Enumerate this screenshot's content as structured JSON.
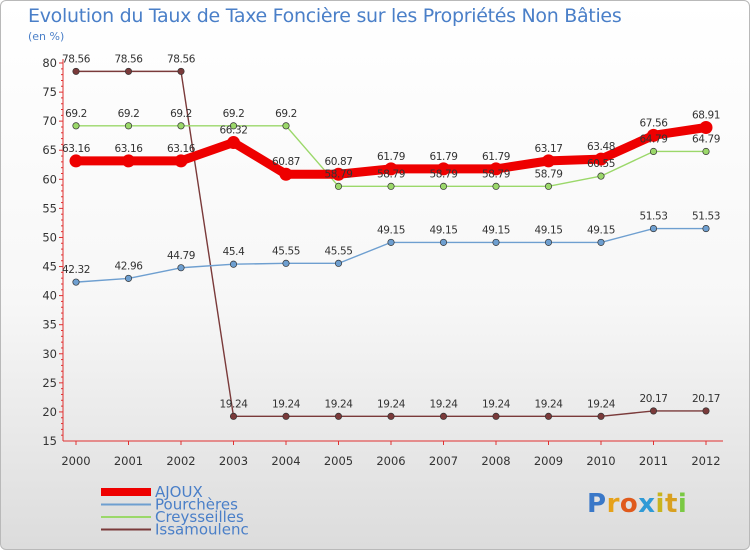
{
  "header": {
    "title": "Evolution du Taux de Taxe Foncière sur les Propriétés Non Bâties",
    "unit": "(en %)"
  },
  "logo": {
    "letters": [
      "P",
      "r",
      "o",
      "x",
      "i",
      "t",
      "i"
    ],
    "colors": [
      "#3a78c8",
      "#e6a21a",
      "#e05a1c",
      "#2f9ad6",
      "#c8b41e",
      "#d8a020",
      "#7ac943"
    ]
  },
  "chart_data": {
    "type": "line",
    "title": "Evolution du Taux de Taxe Foncière sur les Propriétés Non Bâties",
    "ylabel": "(en %)",
    "xlabel": "",
    "x": [
      "2000",
      "2001",
      "2002",
      "2003",
      "2004",
      "2005",
      "2006",
      "2007",
      "2008",
      "2009",
      "2010",
      "2011",
      "2012"
    ],
    "ylim": [
      15,
      80
    ],
    "yticks": [
      15,
      20,
      25,
      30,
      35,
      40,
      45,
      50,
      55,
      60,
      65,
      70,
      75,
      80
    ],
    "grid": false,
    "legend_position": "bottom-left",
    "series": [
      {
        "name": "AJOUX",
        "color": "#ee0000",
        "thick": true,
        "values": [
          63.16,
          63.16,
          63.16,
          66.32,
          60.87,
          60.87,
          61.79,
          61.79,
          61.79,
          63.17,
          63.48,
          67.56,
          68.91
        ],
        "labels": [
          "63.16",
          "63.16",
          "63.16",
          "66.32",
          "60.87",
          "60.87",
          "61.79",
          "61.79",
          "61.79",
          "63.17",
          "63.48",
          "67.56",
          "68.91"
        ]
      },
      {
        "name": "Pourchères",
        "color": "#6e9fd0",
        "thick": false,
        "values": [
          42.32,
          42.96,
          44.79,
          45.4,
          45.55,
          45.55,
          49.15,
          49.15,
          49.15,
          49.15,
          49.15,
          51.53,
          51.53
        ],
        "labels": [
          "42.32",
          "42.96",
          "44.79",
          "45.4",
          "45.55",
          "45.55",
          "49.15",
          "49.15",
          "49.15",
          "49.15",
          "49.15",
          "51.53",
          "51.53"
        ]
      },
      {
        "name": "Creysseilles",
        "color": "#9bd86a",
        "thick": false,
        "values": [
          69.2,
          69.2,
          69.2,
          69.2,
          69.2,
          58.79,
          58.79,
          58.79,
          58.79,
          58.79,
          60.55,
          64.79,
          64.79
        ],
        "labels": [
          "69.2",
          "69.2",
          "69.2",
          "69.2",
          "69.2",
          "58.79",
          "58.79",
          "58.79",
          "58.79",
          "58.79",
          "60.55",
          "64.79",
          "64.79"
        ]
      },
      {
        "name": "Issamoulenc",
        "color": "#7a3a3a",
        "thick": false,
        "values": [
          78.56,
          78.56,
          78.56,
          19.24,
          19.24,
          19.24,
          19.24,
          19.24,
          19.24,
          19.24,
          19.24,
          20.17,
          20.17
        ],
        "labels": [
          "78.56",
          "78.56",
          "78.56",
          "19.24",
          "19.24",
          "19.24",
          "19.24",
          "19.24",
          "19.24",
          "19.24",
          "19.24",
          "20.17",
          "20.17"
        ]
      }
    ]
  }
}
